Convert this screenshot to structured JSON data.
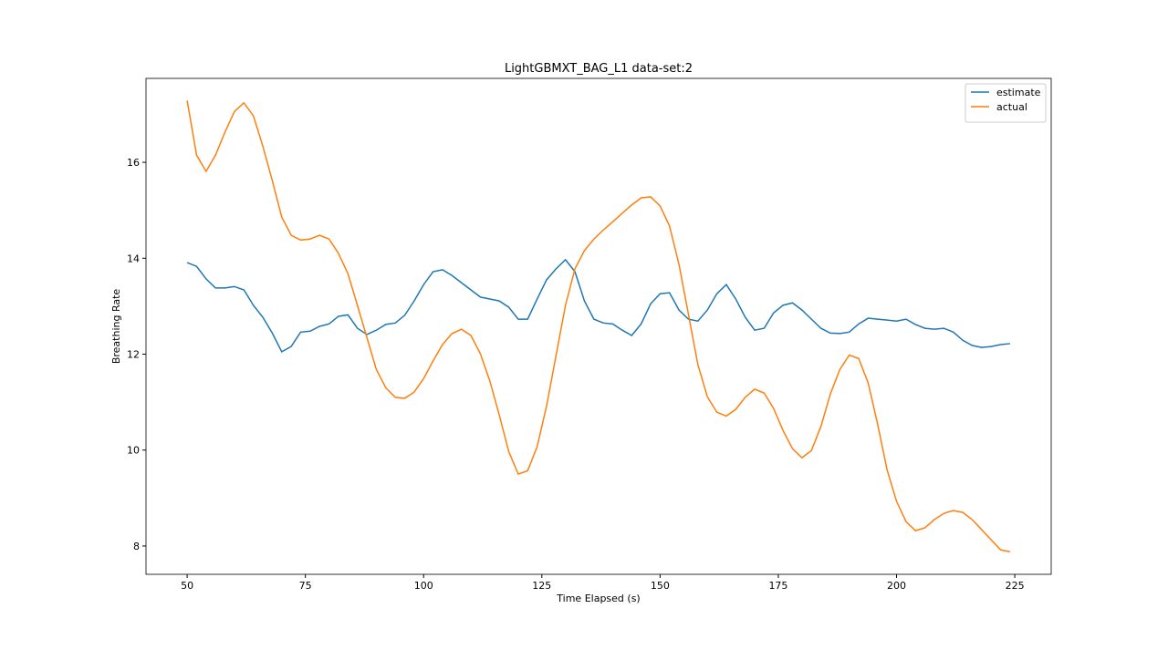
{
  "chart_data": {
    "type": "line",
    "title": "LightGBMXT_BAG_L1 data-set:2",
    "x_label": "Time Elapsed (s)",
    "y_label": "Breathing Rate",
    "x": [
      50,
      52,
      54,
      56,
      58,
      60,
      62,
      64,
      66,
      68,
      70,
      72,
      74,
      76,
      78,
      80,
      82,
      84,
      86,
      88,
      90,
      92,
      94,
      96,
      98,
      100,
      102,
      104,
      106,
      108,
      110,
      112,
      114,
      116,
      118,
      120,
      122,
      124,
      126,
      128,
      130,
      132,
      134,
      136,
      138,
      140,
      142,
      144,
      146,
      148,
      150,
      152,
      154,
      156,
      158,
      160,
      162,
      164,
      166,
      168,
      170,
      172,
      174,
      176,
      178,
      180,
      182,
      184,
      186,
      188,
      190,
      192,
      194,
      196,
      198,
      200,
      202,
      204,
      206,
      208,
      210,
      212,
      214,
      216,
      218,
      220,
      222,
      224
    ],
    "series": [
      {
        "name": "estimate",
        "color": "#1f77b4",
        "values": [
          13.91,
          13.83,
          13.57,
          13.38,
          13.38,
          13.41,
          13.34,
          13.02,
          12.77,
          12.44,
          12.05,
          12.16,
          12.46,
          12.48,
          12.58,
          12.63,
          12.79,
          12.82,
          12.54,
          12.41,
          12.5,
          12.62,
          12.65,
          12.81,
          13.11,
          13.45,
          13.72,
          13.76,
          13.64,
          13.49,
          13.34,
          13.19,
          13.15,
          13.11,
          12.98,
          12.73,
          12.73,
          13.15,
          13.55,
          13.78,
          13.97,
          13.72,
          13.11,
          12.73,
          12.65,
          12.63,
          12.5,
          12.39,
          12.63,
          13.05,
          13.26,
          13.28,
          12.92,
          12.73,
          12.69,
          12.92,
          13.26,
          13.45,
          13.15,
          12.77,
          12.5,
          12.54,
          12.86,
          13.02,
          13.07,
          12.92,
          12.73,
          12.54,
          12.44,
          12.43,
          12.46,
          12.63,
          12.75,
          12.73,
          12.71,
          12.69,
          12.73,
          12.62,
          12.54,
          12.52,
          12.54,
          12.46,
          12.29,
          12.18,
          12.14,
          12.16,
          12.2,
          12.22
        ]
      },
      {
        "name": "actual",
        "color": "#ff7f0e",
        "values": [
          17.29,
          16.15,
          15.81,
          16.15,
          16.63,
          17.06,
          17.24,
          16.97,
          16.34,
          15.62,
          14.86,
          14.48,
          14.38,
          14.4,
          14.48,
          14.4,
          14.1,
          13.68,
          13.02,
          12.35,
          11.68,
          11.3,
          11.1,
          11.08,
          11.21,
          11.49,
          11.86,
          12.2,
          12.43,
          12.52,
          12.39,
          12.01,
          11.44,
          10.73,
          9.97,
          9.5,
          9.57,
          10.07,
          10.92,
          11.97,
          13.02,
          13.78,
          14.16,
          14.4,
          14.59,
          14.76,
          14.94,
          15.11,
          15.26,
          15.28,
          15.09,
          14.67,
          13.87,
          12.83,
          11.78,
          11.11,
          10.79,
          10.71,
          10.85,
          11.1,
          11.27,
          11.19,
          10.87,
          10.41,
          10.03,
          9.84,
          9.99,
          10.49,
          11.17,
          11.68,
          11.98,
          11.91,
          11.4,
          10.54,
          9.59,
          8.93,
          8.51,
          8.32,
          8.38,
          8.55,
          8.68,
          8.74,
          8.7,
          8.55,
          8.34,
          8.13,
          7.92,
          7.88
        ]
      }
    ],
    "xlim": [
      41.3,
      232.7
    ],
    "ylim": [
      7.41,
      17.75
    ],
    "xticks": [
      50,
      75,
      100,
      125,
      150,
      175,
      200,
      225
    ],
    "yticks": [
      8,
      10,
      12,
      14,
      16
    ],
    "legend": "upper right"
  }
}
